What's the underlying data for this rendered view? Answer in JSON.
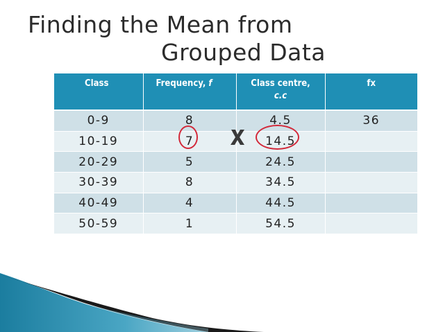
{
  "slide": {
    "title_line1": "Finding the Mean from",
    "title_line2": "Grouped Data"
  },
  "table": {
    "headers": {
      "class": "Class",
      "frequency": "Frequency, ",
      "frequency_var": "f",
      "class_centre": "Class centre,",
      "class_centre_var": "c.c",
      "fx": "fx"
    },
    "rows": [
      {
        "class": "0-9",
        "frequency": "8",
        "class_centre": "4.5",
        "fx": "36"
      },
      {
        "class": "10-19",
        "frequency": "7",
        "class_centre": "14.5",
        "fx": ""
      },
      {
        "class": "20-29",
        "frequency": "5",
        "class_centre": "24.5",
        "fx": ""
      },
      {
        "class": "30-39",
        "frequency": "8",
        "class_centre": "34.5",
        "fx": ""
      },
      {
        "class": "40-49",
        "frequency": "4",
        "class_centre": "44.5",
        "fx": ""
      },
      {
        "class": "50-59",
        "frequency": "1",
        "class_centre": "54.5",
        "fx": ""
      }
    ]
  },
  "colors": {
    "header_bg": "#1f8fb5",
    "row_odd": "#cfe0e7",
    "row_even": "#e7f0f3",
    "annotation_red": "#d3293a",
    "multiply_sign": "#3a3a3a"
  },
  "icons": {
    "multiply": "times-icon"
  }
}
